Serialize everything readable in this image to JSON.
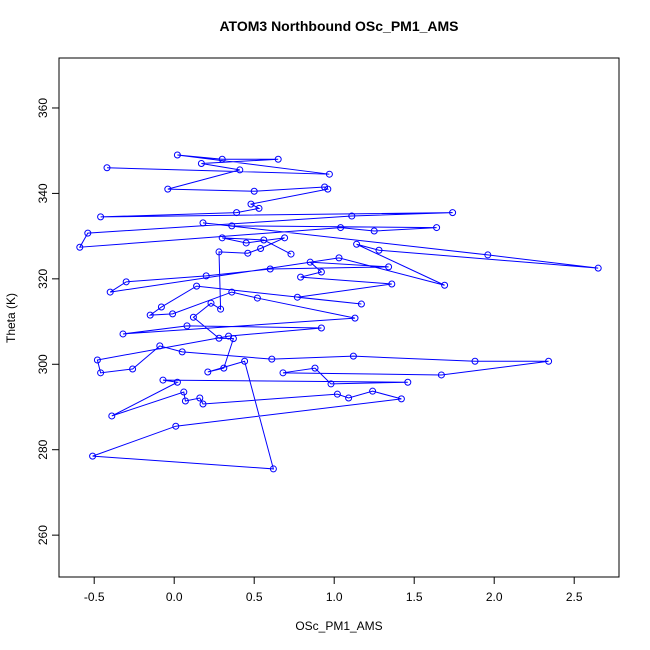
{
  "chart_data": {
    "type": "line",
    "title": "ATOM3 Northbound OSc_PM1_AMS",
    "x_label": "OSc_PM1_AMS",
    "y_label": "Theta (K)",
    "xlim": [
      -0.72,
      2.78
    ],
    "ylim": [
      250.2,
      371.7
    ],
    "xticks": [
      -0.5,
      {
        "value": 0,
        "label": "0.0"
      },
      0.5,
      {
        "value": 1,
        "label": "1.0"
      },
      1.5,
      {
        "value": 2,
        "label": "2.0"
      },
      2.5
    ],
    "yticks": [
      260,
      280,
      300,
      320,
      340,
      360
    ],
    "x": [
      -0.42,
      0.97,
      0.02,
      0.3,
      0.65,
      0.17,
      0.41,
      -0.04,
      0.5,
      0.94,
      0.96,
      0.48,
      0.53,
      0.39,
      -0.46,
      1.74,
      1.11,
      -0.54,
      -0.59,
      1.04,
      1.25,
      1.64,
      0.36,
      0.18,
      1.96,
      2.65,
      1.28,
      1.14,
      1.69,
      1.03,
      -0.4,
      -0.3,
      0.2,
      0.6,
      1.34,
      0.85,
      0.92,
      0.79,
      1.36,
      0.77,
      1.17,
      0.14,
      -0.08,
      -0.15,
      -0.01,
      0.36,
      0.52,
      1.13,
      -0.32,
      0.08,
      0.92,
      0.34,
      -0.48,
      -0.46,
      -0.26,
      -0.09,
      0.05,
      0.61,
      1.12,
      1.88,
      2.34,
      1.67,
      0.68,
      0.88,
      0.98,
      1.46,
      -0.07,
      0.02,
      -0.39,
      0.06,
      0.07,
      0.16,
      0.18,
      1.02,
      1.09,
      1.24,
      1.42,
      0.01,
      -0.51,
      0.62,
      0.44,
      0.21,
      0.31,
      0.37,
      0.28,
      0.12,
      0.23,
      0.29,
      0.28,
      0.46,
      0.54,
      0.69,
      0.45,
      0.3,
      0.56,
      0.73
    ],
    "series": [
      {
        "name": "Theta (K)",
        "color": "#0000ff",
        "values": [
          346,
          344.5,
          349,
          348,
          348,
          347,
          345.5,
          341,
          340.5,
          341.5,
          341,
          337.5,
          336.5,
          335.5,
          334.5,
          335.5,
          334.7,
          330.7,
          327.4,
          332,
          331.2,
          332,
          332.4,
          333.1,
          325.6,
          322.5,
          326.7,
          328.1,
          318.5,
          324.9,
          316.9,
          319.3,
          320.7,
          322.3,
          322.8,
          323.9,
          321.6,
          320.4,
          318.8,
          315.7,
          314.1,
          318.3,
          313.4,
          311.5,
          311.8,
          316.9,
          315.5,
          310.8,
          307.1,
          309,
          308.5,
          306.6,
          301,
          298,
          298.9,
          304.3,
          302.9,
          301.2,
          301.9,
          300.7,
          300.7,
          297.5,
          298,
          299.1,
          295.4,
          295.8,
          296.3,
          295.8,
          287.9,
          293.5,
          291.4,
          292.1,
          290.7,
          293,
          292.1,
          293.7,
          291.9,
          285.5,
          278.5,
          275.5,
          300.7,
          298.2,
          299.1,
          306,
          306.1,
          311,
          314.3,
          312.9,
          326.3,
          326,
          327.1,
          329.6,
          328.4,
          329.6,
          329.1,
          325.8
        ]
      }
    ]
  }
}
